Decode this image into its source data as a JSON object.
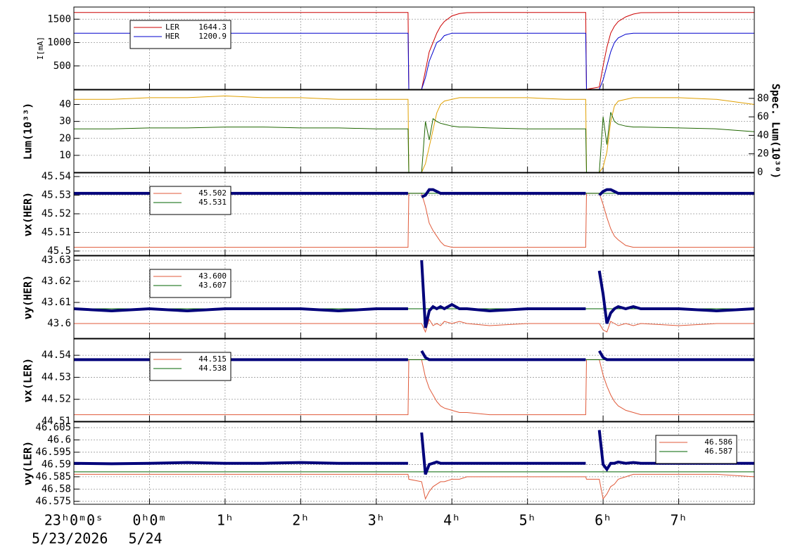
{
  "chart_data": {
    "type": "line",
    "grid": true,
    "x": [
      -1,
      -0.5,
      0,
      0.5,
      1,
      1.5,
      2,
      2.5,
      3,
      3.4,
      3.42,
      3.43,
      3.6,
      3.65,
      3.7,
      3.75,
      3.8,
      3.85,
      3.9,
      4.0,
      4.1,
      4.2,
      4.5,
      5,
      5.5,
      5.76,
      5.77,
      5.78,
      5.95,
      6.0,
      6.05,
      6.1,
      6.15,
      6.2,
      6.3,
      6.4,
      6.5,
      7,
      7.5,
      8
    ],
    "xlim": [
      -1,
      8
    ],
    "xticks": [
      {
        "value": -1,
        "label": "23ʰ0ᵐ0ˢ"
      },
      {
        "value": 0,
        "label": "0ʰ0ᵐ"
      },
      {
        "value": 1,
        "label": "1ʰ"
      },
      {
        "value": 2,
        "label": "2ʰ"
      },
      {
        "value": 3,
        "label": "3ʰ"
      },
      {
        "value": 4,
        "label": "4ʰ"
      },
      {
        "value": 5,
        "label": "5ʰ"
      },
      {
        "value": 6,
        "label": "6ʰ"
      },
      {
        "value": 7,
        "label": "7ʰ"
      }
    ],
    "xdate_labels": [
      {
        "value": -1,
        "label": "5/23/2026"
      },
      {
        "value": 0,
        "label": "5/24"
      }
    ],
    "panels": [
      {
        "ylabel": "I[mA]",
        "ylim": [
          0,
          1760
        ],
        "yticks": [
          500,
          1000,
          1500
        ],
        "legend": "upper left",
        "series": [
          {
            "name": "LER",
            "last_value": "1644.3",
            "color": "#cc0000",
            "width": 1,
            "values": [
              1644,
              1644,
              1644,
              1644,
              1644,
              1644,
              1644,
              1644,
              1644,
              1644,
              1644,
              0,
              0,
              400,
              800,
              1000,
              1200,
              1350,
              1450,
              1570,
              1620,
              1640,
              1644,
              1644,
              1644,
              1644,
              1644,
              0,
              50,
              500,
              900,
              1200,
              1350,
              1450,
              1550,
              1610,
              1640,
              1644,
              1644,
              1644
            ]
          },
          {
            "name": "HER",
            "last_value": "1200.9",
            "color": "#0000cc",
            "width": 1,
            "values": [
              1200,
              1200,
              1200,
              1200,
              1200,
              1200,
              1200,
              1200,
              1200,
              1200,
              1200,
              0,
              0,
              250,
              600,
              800,
              1000,
              1050,
              1150,
              1200,
              1200,
              1200,
              1200,
              1200,
              1200,
              1200,
              1200,
              0,
              0,
              200,
              500,
              800,
              1000,
              1100,
              1180,
              1200,
              1200,
              1200,
              1200,
              1200
            ]
          }
        ]
      },
      {
        "ylabel": "Lum(10³³)",
        "ylim": [
          0,
          48.5
        ],
        "yticks": [
          10,
          20,
          30,
          40
        ],
        "y2label": "Spec. Lum(10³⁰)",
        "y2lim": [
          0,
          89
        ],
        "y2ticks": [
          0,
          20,
          40,
          60,
          80
        ],
        "series": [
          {
            "color": "#e0a000",
            "width": 1,
            "values": [
              43,
              43,
              44,
              44,
              45,
              44,
              44,
              43,
              43,
              43,
              43,
              0,
              0,
              5,
              15,
              25,
              35,
              40,
              42,
              43,
              44,
              44,
              44,
              44,
              43,
              43,
              43,
              0,
              0,
              3,
              12,
              30,
              39,
              42,
              43,
              44,
              44,
              44,
              43,
              40
            ]
          },
          {
            "color": "#1f6600",
            "width": 1,
            "axis": "y2",
            "values": [
              47,
              47,
              48,
              48,
              49,
              49,
              48,
              48,
              47,
              47,
              47,
              0,
              0,
              55,
              35,
              58,
              55,
              53,
              52,
              50,
              49,
              49,
              48,
              47,
              47,
              47,
              47,
              0,
              0,
              60,
              30,
              65,
              55,
              52,
              50,
              49,
              49,
              48,
              47,
              44
            ]
          }
        ]
      },
      {
        "ylabel": "νx(HER)",
        "ylim": [
          45.4977,
          45.5419
        ],
        "yticks": [
          45.5,
          45.51,
          45.52,
          45.53,
          45.54
        ],
        "legend": "upper left",
        "series": [
          {
            "name": "45.502",
            "color": "#e05a3a",
            "width": 1,
            "values": [
              45.502,
              45.502,
              45.502,
              45.502,
              45.502,
              45.502,
              45.502,
              45.502,
              45.502,
              45.502,
              45.502,
              45.531,
              45.531,
              45.524,
              45.515,
              45.511,
              45.508,
              45.505,
              45.503,
              45.502,
              45.502,
              45.502,
              45.502,
              45.502,
              45.502,
              45.502,
              45.502,
              45.531,
              45.531,
              45.525,
              45.518,
              45.512,
              45.508,
              45.506,
              45.503,
              45.502,
              45.502,
              45.502,
              45.502,
              45.502
            ]
          },
          {
            "name": "45.531",
            "color": "#006600",
            "width": 1,
            "values": [
              45.531,
              45.531,
              45.531,
              45.531,
              45.531,
              45.531,
              45.531,
              45.531,
              45.531,
              45.531,
              45.531,
              45.531,
              45.531,
              45.531,
              45.531,
              45.531,
              45.531,
              45.531,
              45.531,
              45.531,
              45.531,
              45.531,
              45.531,
              45.531,
              45.531,
              45.531,
              45.531,
              45.531,
              45.531,
              45.531,
              45.531,
              45.531,
              45.531,
              45.531,
              45.531,
              45.531,
              45.531,
              45.531,
              45.531,
              45.531
            ]
          },
          {
            "color": "#00007a",
            "width": 4,
            "values": [
              45.531,
              45.531,
              45.531,
              45.531,
              45.531,
              45.531,
              45.531,
              45.531,
              45.531,
              45.531,
              45.531,
              null,
              45.529,
              45.53,
              45.533,
              45.533,
              45.532,
              45.531,
              45.531,
              45.531,
              45.531,
              45.531,
              45.531,
              45.531,
              45.531,
              45.531,
              45.531,
              null,
              45.53,
              45.532,
              45.533,
              45.533,
              45.532,
              45.531,
              45.531,
              45.531,
              45.531,
              45.531,
              45.531,
              45.531
            ]
          }
        ]
      },
      {
        "ylabel": "νy(HER)",
        "ylim": [
          43.593,
          43.632
        ],
        "yticks": [
          43.6,
          43.61,
          43.62,
          43.63
        ],
        "legend": "upper left",
        "series": [
          {
            "name": "43.600",
            "color": "#e05a3a",
            "width": 1,
            "values": [
              43.6,
              43.6,
              43.6,
              43.6,
              43.6,
              43.6,
              43.6,
              43.6,
              43.6,
              43.6,
              43.6,
              43.6,
              43.6,
              43.596,
              43.602,
              43.599,
              43.6,
              43.599,
              43.601,
              43.6,
              43.601,
              43.6,
              43.599,
              43.6,
              43.6,
              43.6,
              43.6,
              43.6,
              43.6,
              43.597,
              43.596,
              43.601,
              43.6,
              43.599,
              43.6,
              43.599,
              43.6,
              43.599,
              43.6,
              43.6
            ]
          },
          {
            "name": "43.607",
            "color": "#006600",
            "width": 1,
            "values": [
              43.607,
              43.607,
              43.607,
              43.607,
              43.607,
              43.607,
              43.607,
              43.607,
              43.607,
              43.607,
              43.607,
              43.607,
              43.607,
              43.607,
              43.607,
              43.607,
              43.607,
              43.607,
              43.607,
              43.607,
              43.607,
              43.607,
              43.607,
              43.607,
              43.607,
              43.607,
              43.607,
              43.607,
              43.607,
              43.607,
              43.607,
              43.607,
              43.607,
              43.607,
              43.607,
              43.607,
              43.607,
              43.607,
              43.607,
              43.607
            ]
          },
          {
            "color": "#00007a",
            "width": 4,
            "values": [
              43.607,
              43.606,
              43.607,
              43.606,
              43.607,
              43.607,
              43.607,
              43.606,
              43.607,
              43.607,
              43.607,
              null,
              43.63,
              43.598,
              43.606,
              43.608,
              43.607,
              43.608,
              43.607,
              43.609,
              43.607,
              43.607,
              43.606,
              43.607,
              43.607,
              43.607,
              43.607,
              null,
              43.625,
              43.614,
              43.6,
              43.605,
              43.607,
              43.608,
              43.607,
              43.608,
              43.607,
              43.607,
              43.606,
              43.607
            ]
          }
        ]
      },
      {
        "ylabel": "νx(LER)",
        "ylim": [
          44.51,
          44.5474
        ],
        "yticks": [
          44.51,
          44.52,
          44.53,
          44.54
        ],
        "legend": "upper left",
        "series": [
          {
            "name": "44.515",
            "color": "#e05a3a",
            "width": 1,
            "values": [
              44.513,
              44.513,
              44.513,
              44.513,
              44.513,
              44.513,
              44.513,
              44.513,
              44.513,
              44.513,
              44.513,
              44.538,
              44.538,
              44.53,
              44.525,
              44.522,
              44.519,
              44.517,
              44.516,
              44.515,
              44.514,
              44.514,
              44.513,
              44.513,
              44.513,
              44.513,
              44.513,
              44.538,
              44.538,
              44.531,
              44.526,
              44.522,
              44.519,
              44.517,
              44.515,
              44.514,
              44.513,
              44.513,
              44.513,
              44.513
            ]
          },
          {
            "name": "44.538",
            "color": "#006600",
            "width": 1,
            "values": [
              44.538,
              44.538,
              44.538,
              44.538,
              44.538,
              44.538,
              44.538,
              44.538,
              44.538,
              44.538,
              44.538,
              44.538,
              44.538,
              44.538,
              44.538,
              44.538,
              44.538,
              44.538,
              44.538,
              44.538,
              44.538,
              44.538,
              44.538,
              44.538,
              44.538,
              44.538,
              44.538,
              44.538,
              44.538,
              44.538,
              44.538,
              44.538,
              44.538,
              44.538,
              44.538,
              44.538,
              44.538,
              44.538,
              44.538,
              44.538
            ]
          },
          {
            "color": "#00007a",
            "width": 4,
            "values": [
              44.538,
              44.538,
              44.538,
              44.538,
              44.538,
              44.538,
              44.538,
              44.538,
              44.538,
              44.538,
              44.538,
              null,
              44.542,
              44.539,
              44.538,
              44.538,
              44.538,
              44.538,
              44.538,
              44.538,
              44.538,
              44.538,
              44.538,
              44.538,
              44.538,
              44.538,
              44.538,
              null,
              44.542,
              44.539,
              44.538,
              44.538,
              44.538,
              44.538,
              44.538,
              44.538,
              44.538,
              44.538,
              44.538,
              44.538
            ]
          }
        ]
      },
      {
        "ylabel": "νy(LER)",
        "ylim": [
          46.5738,
          46.6073
        ],
        "yticks": [
          46.575,
          46.58,
          46.585,
          46.59,
          46.595,
          46.6,
          46.605
        ],
        "legend": "upper right",
        "series": [
          {
            "name": "46.586",
            "color": "#e05a3a",
            "width": 1,
            "values": [
              46.586,
              46.586,
              46.586,
              46.586,
              46.586,
              46.586,
              46.586,
              46.586,
              46.586,
              46.586,
              46.586,
              46.584,
              46.583,
              46.576,
              46.579,
              46.581,
              46.582,
              46.583,
              46.583,
              46.584,
              46.584,
              46.585,
              46.585,
              46.585,
              46.585,
              46.585,
              46.585,
              46.584,
              46.584,
              46.576,
              46.578,
              46.581,
              46.582,
              46.584,
              46.585,
              46.586,
              46.586,
              46.586,
              46.586,
              46.585
            ]
          },
          {
            "name": "46.587",
            "color": "#006600",
            "width": 1,
            "values": [
              46.587,
              46.587,
              46.587,
              46.587,
              46.587,
              46.587,
              46.587,
              46.587,
              46.587,
              46.587,
              46.587,
              46.587,
              46.587,
              46.587,
              46.587,
              46.587,
              46.587,
              46.587,
              46.587,
              46.587,
              46.587,
              46.587,
              46.587,
              46.587,
              46.587,
              46.587,
              46.587,
              46.587,
              46.587,
              46.587,
              46.587,
              46.587,
              46.587,
              46.587,
              46.587,
              46.587,
              46.587,
              46.587,
              46.587,
              46.587
            ]
          },
          {
            "color": "#00007a",
            "width": 4,
            "values": [
              46.5905,
              46.5903,
              46.5905,
              46.5908,
              46.5905,
              46.5905,
              46.5908,
              46.5905,
              46.5905,
              46.5905,
              46.5905,
              null,
              46.603,
              46.586,
              46.59,
              46.5905,
              46.591,
              46.5905,
              46.5905,
              46.5905,
              46.5905,
              46.5905,
              46.5905,
              46.5905,
              46.5905,
              46.5905,
              46.5905,
              null,
              46.604,
              46.59,
              46.588,
              46.5905,
              46.5905,
              46.591,
              46.5905,
              46.5908,
              46.5905,
              46.5905,
              46.5905,
              46.5905
            ]
          }
        ]
      }
    ]
  }
}
